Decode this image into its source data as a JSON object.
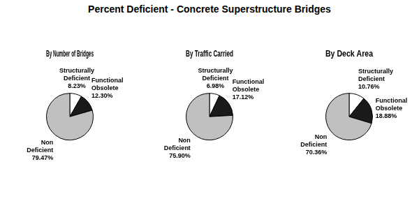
{
  "title": "Percent Deficient - Concrete Superstructure Bridges",
  "chart_data": [
    {
      "type": "pie",
      "subtitle": "By Number of Bridges",
      "categories": [
        "Structurally\nDeficient",
        "Functional\nObsolete",
        "Non\nDeficient"
      ],
      "values": [
        8.23,
        12.3,
        79.47
      ],
      "value_labels": [
        "8.23%",
        "12.30%",
        "79.47%"
      ],
      "colors": [
        "#ffffff",
        "#1a1a1a",
        "#c0c0c0"
      ],
      "data_labels": true
    },
    {
      "type": "pie",
      "subtitle": "By Traffic Carried",
      "categories": [
        "Structurally\nDeficient",
        "Functional\nObsolete",
        "Non\nDeficient"
      ],
      "values": [
        6.98,
        17.12,
        75.9
      ],
      "value_labels": [
        "6.98%",
        "17.12%",
        "75.90%"
      ],
      "colors": [
        "#ffffff",
        "#1a1a1a",
        "#c0c0c0"
      ],
      "data_labels": true
    },
    {
      "type": "pie",
      "subtitle": "By Deck Area",
      "categories": [
        "Structurally\nDeficient",
        "Functional\nObsolete",
        "Non\nDeficient"
      ],
      "values": [
        10.76,
        18.88,
        70.36
      ],
      "value_labels": [
        "10.76%",
        "18.88%",
        "70.36%"
      ],
      "colors": [
        "#ffffff",
        "#1a1a1a",
        "#c0c0c0"
      ],
      "data_labels": true
    }
  ]
}
